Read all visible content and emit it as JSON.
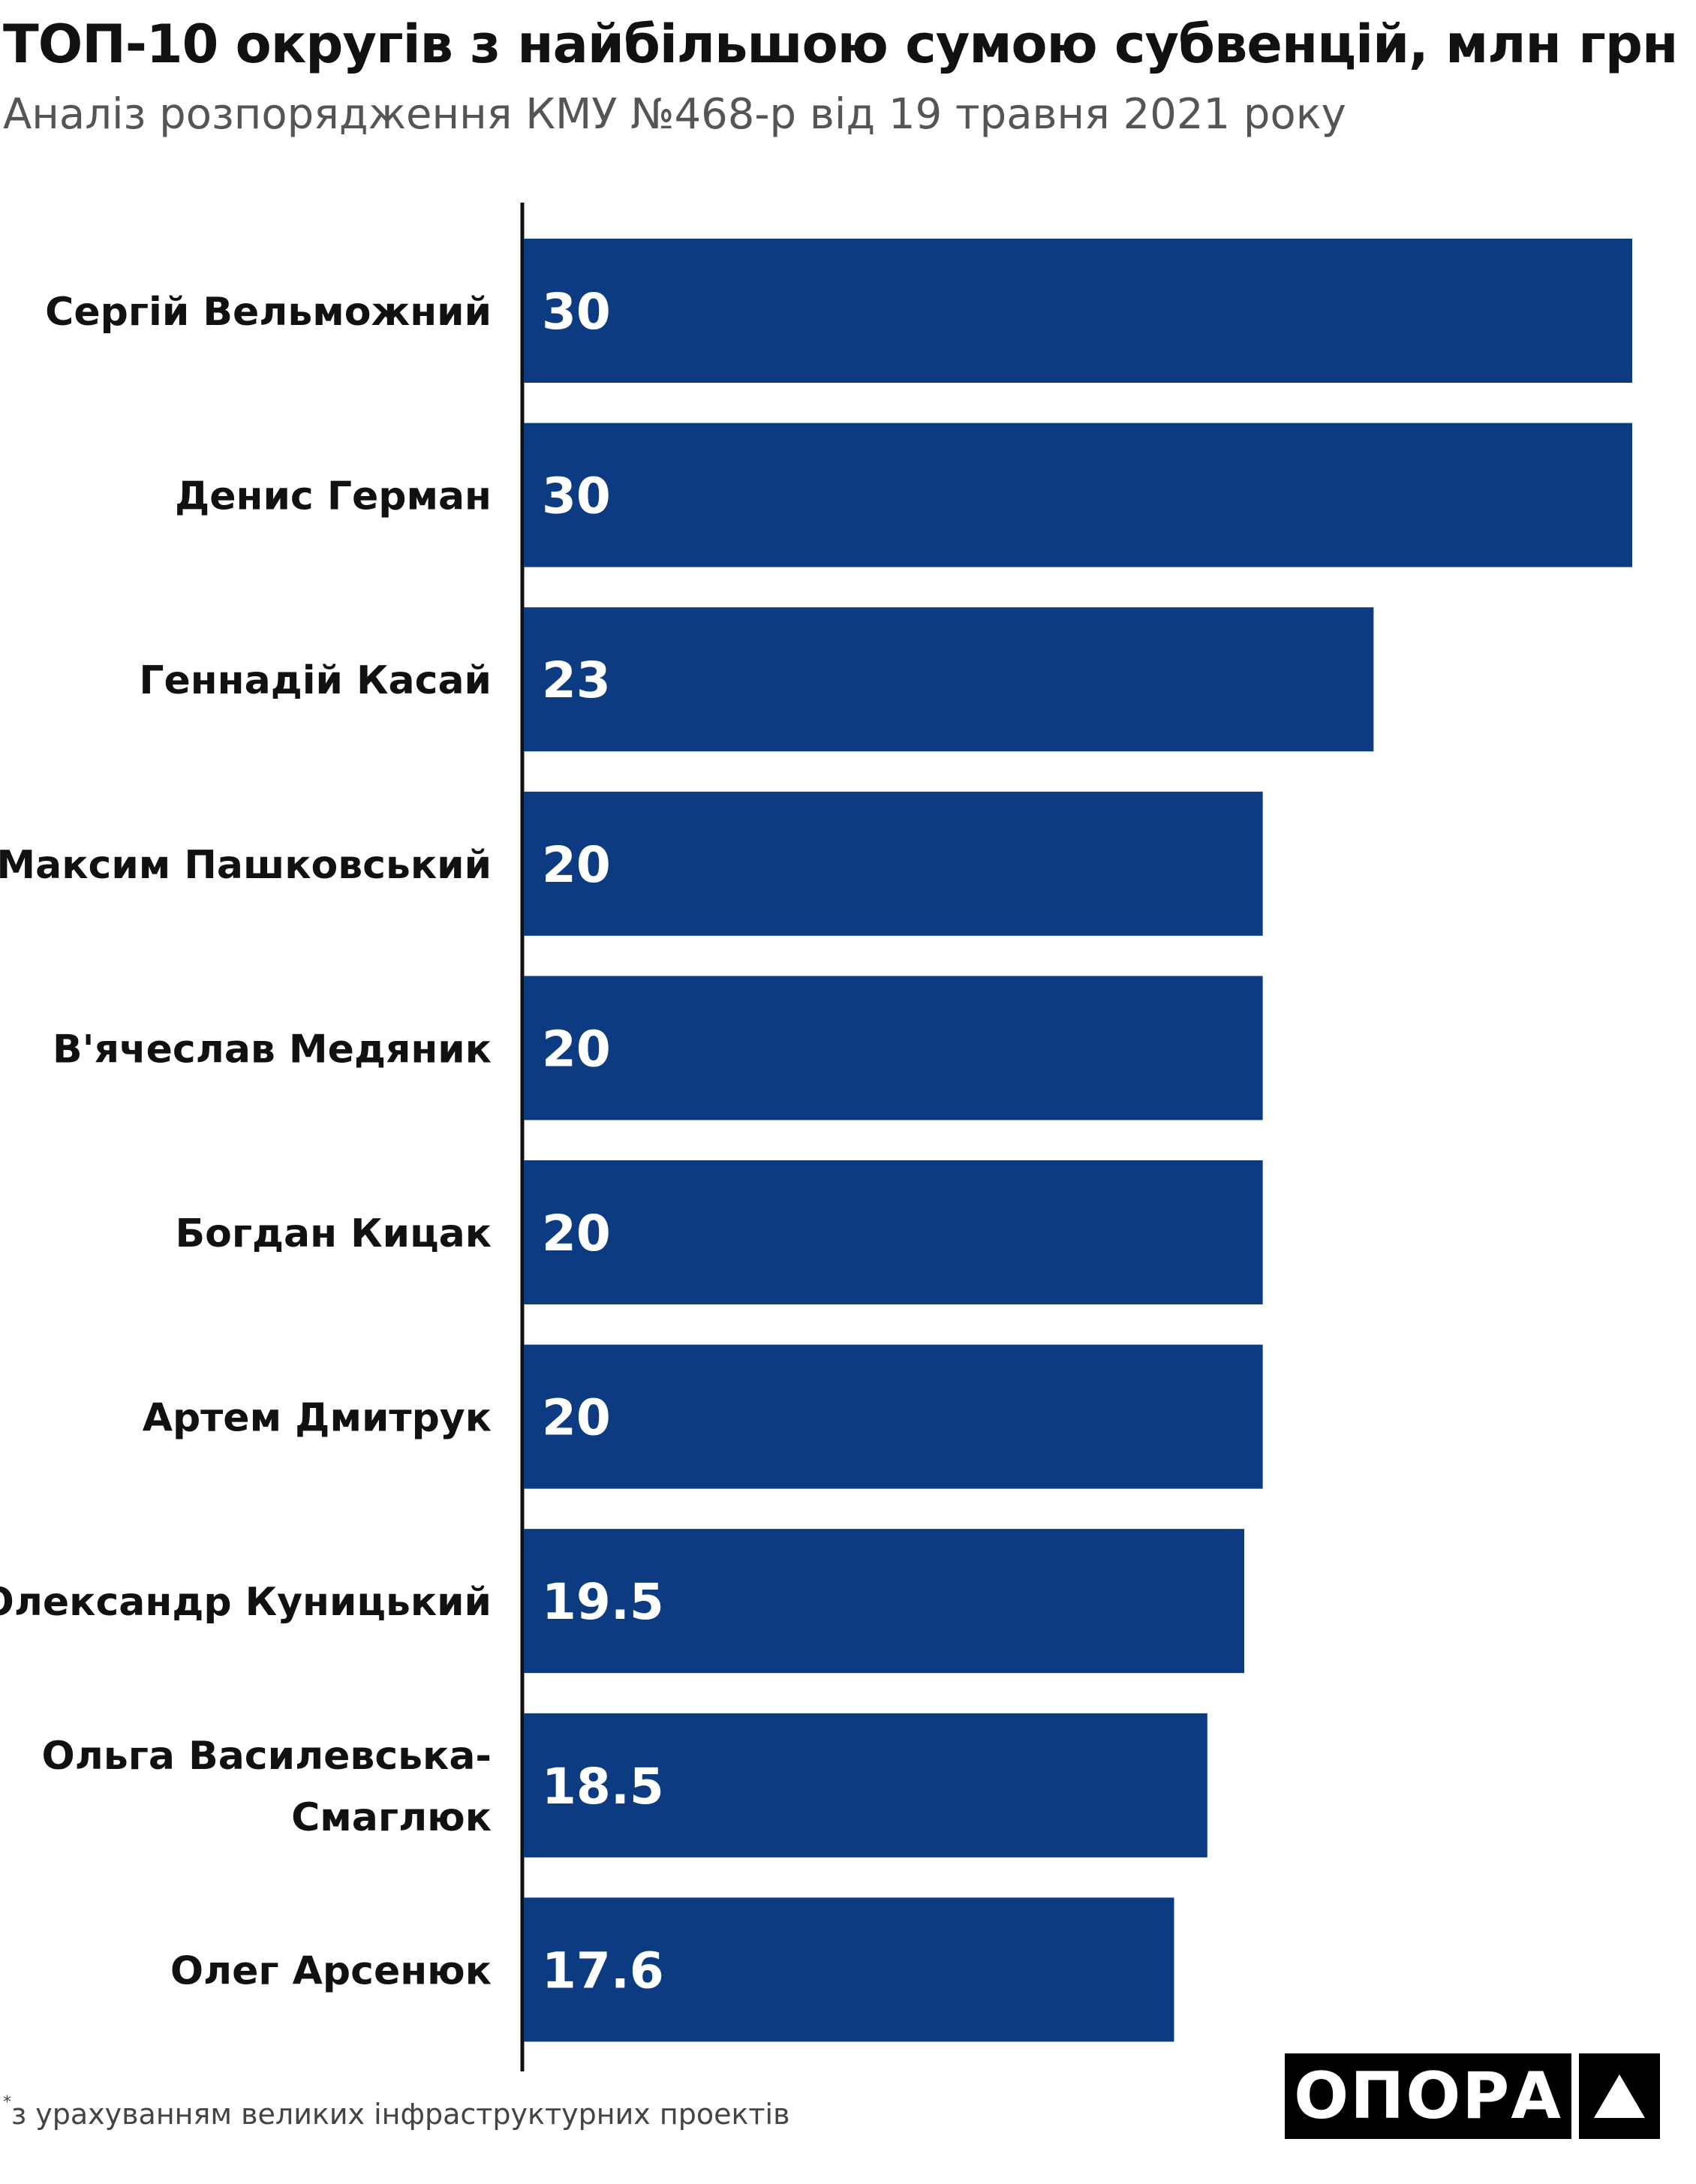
{
  "title": "ТОП-10 округів з найбільшою сумою субвенцій, млн грн",
  "subtitle": "Аналіз розпорядження КМУ №468-р від 19 травня 2021 року",
  "footnote": {
    "mark": "*",
    "text": "з урахуванням великих інфраструктурних проектів"
  },
  "logo": {
    "text": "ОПОРА",
    "icon": "triangle-icon"
  },
  "colors": {
    "bar": "#0c3b82",
    "value_label": "#ffffff",
    "category_label": "#111111",
    "axis": "#111111"
  },
  "chart_data": {
    "type": "bar",
    "orientation": "horizontal",
    "categories": [
      "Сергій Вельможний",
      "Денис Герман",
      "Геннадій Касай",
      "Максим Пашковський",
      "В'ячеслав Медяник",
      "Богдан Кицак",
      "Артем Дмитрук",
      "Олександр Куницький",
      "Ольга Василевська-Смаглюк",
      "Олег Арсенюк"
    ],
    "category_label_lines": [
      [
        "Сергій Вельможний"
      ],
      [
        "Денис Герман"
      ],
      [
        "Геннадій Касай"
      ],
      [
        "Максим Пашковський"
      ],
      [
        "В'ячеслав Медяник"
      ],
      [
        "Богдан Кицак"
      ],
      [
        "Артем Дмитрук"
      ],
      [
        "Олександр Куницький"
      ],
      [
        "Ольга Василевська-",
        "Смаглюк"
      ],
      [
        "Олег Арсенюк"
      ]
    ],
    "values": [
      30,
      30,
      23,
      20,
      20,
      20,
      20,
      19.5,
      18.5,
      17.6
    ],
    "value_labels": [
      "30",
      "30",
      "23",
      "20",
      "20",
      "20",
      "20",
      "19.5",
      "18.5",
      "17.6"
    ],
    "xlim": [
      0,
      30
    ],
    "grid": false,
    "legend": "none"
  }
}
